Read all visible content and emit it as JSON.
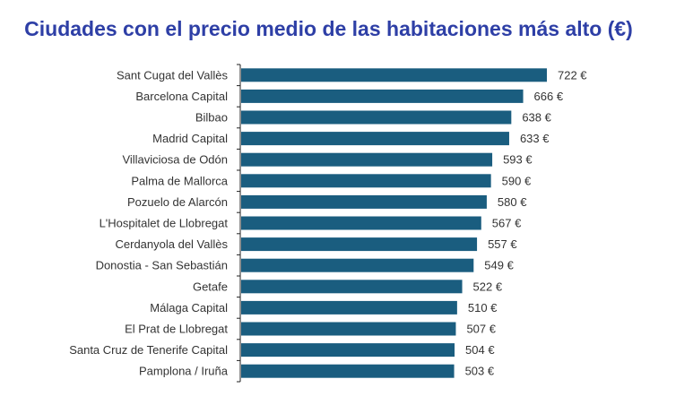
{
  "chart_data": {
    "type": "bar",
    "orientation": "horizontal",
    "title": "Ciudades con el precio medio de las habitaciones más alto (€)",
    "xlabel": "",
    "ylabel": "",
    "value_suffix": " €",
    "grid": false,
    "bar_color": "#1a5d7f",
    "title_color": "#2e3fa6",
    "categories": [
      "Sant Cugat del Vallès",
      "Barcelona Capital",
      "Bilbao",
      "Madrid Capital",
      "Villaviciosa de Odón",
      "Palma de Mallorca",
      "Pozuelo de Alarcón",
      "L'Hospitalet de Llobregat",
      "Cerdanyola del Vallès",
      "Donostia - San Sebastián",
      "Getafe",
      "Málaga Capital",
      "El Prat de Llobregat",
      "Santa Cruz de Tenerife Capital",
      "Pamplona / Iruña"
    ],
    "values": [
      722,
      666,
      638,
      633,
      593,
      590,
      580,
      567,
      557,
      549,
      522,
      510,
      507,
      504,
      503
    ],
    "data_labels": [
      "722 €",
      "666 €",
      "638 €",
      "633 €",
      "593 €",
      "590 €",
      "580 €",
      "567 €",
      "557 €",
      "549 €",
      "522 €",
      "510 €",
      "507 €",
      "504 €",
      "503 €"
    ],
    "xlim": [
      0,
      722
    ]
  }
}
